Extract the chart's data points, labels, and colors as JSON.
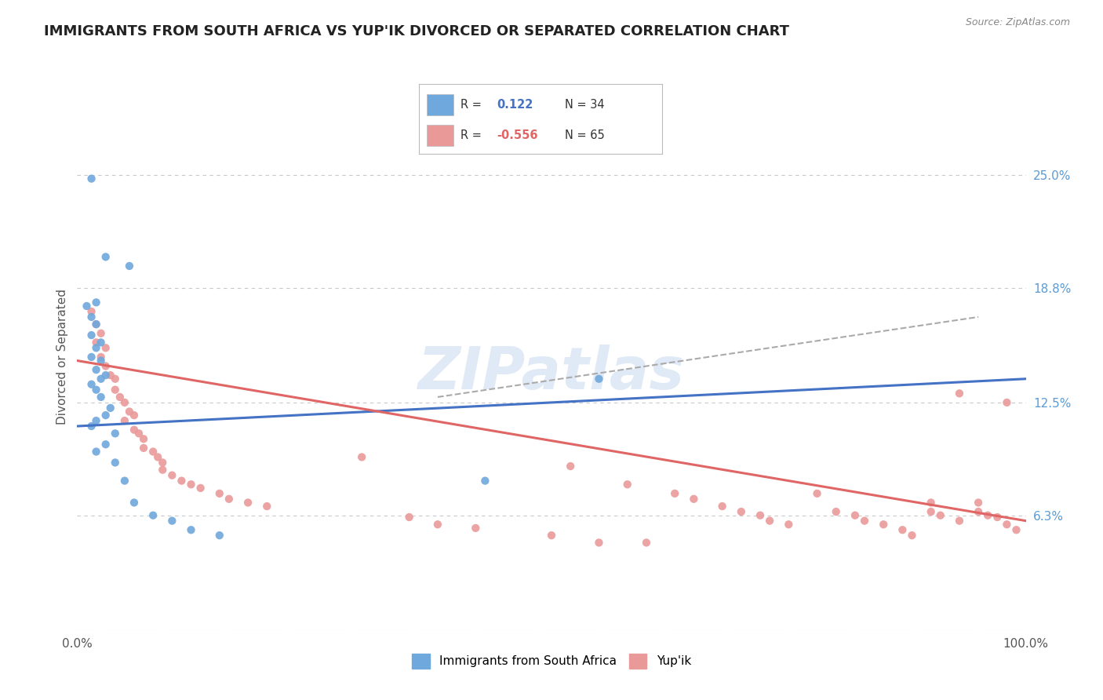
{
  "title": "IMMIGRANTS FROM SOUTH AFRICA VS YUP'IK DIVORCED OR SEPARATED CORRELATION CHART",
  "source_text": "Source: ZipAtlas.com",
  "ylabel": "Divorced or Separated",
  "xlim": [
    0.0,
    1.0
  ],
  "ylim": [
    0.0,
    0.3
  ],
  "ytick_labels": [
    "6.3%",
    "12.5%",
    "18.8%",
    "25.0%"
  ],
  "ytick_values": [
    0.063,
    0.125,
    0.188,
    0.25
  ],
  "xtick_labels": [
    "0.0%",
    "100.0%"
  ],
  "color_blue": "#6fa8dc",
  "color_pink": "#ea9999",
  "color_blue_line": "#4472c4",
  "color_pink_line": "#e06666",
  "color_gray_line": "#aaaaaa",
  "watermark": "ZIPatlas",
  "background_color": "#ffffff",
  "grid_color": "#c8c8c8",
  "blue_scatter": [
    [
      0.015,
      0.248
    ],
    [
      0.03,
      0.205
    ],
    [
      0.055,
      0.2
    ],
    [
      0.02,
      0.18
    ],
    [
      0.01,
      0.178
    ],
    [
      0.015,
      0.172
    ],
    [
      0.02,
      0.168
    ],
    [
      0.015,
      0.162
    ],
    [
      0.025,
      0.158
    ],
    [
      0.02,
      0.155
    ],
    [
      0.015,
      0.15
    ],
    [
      0.025,
      0.148
    ],
    [
      0.02,
      0.143
    ],
    [
      0.03,
      0.14
    ],
    [
      0.025,
      0.138
    ],
    [
      0.015,
      0.135
    ],
    [
      0.02,
      0.132
    ],
    [
      0.025,
      0.128
    ],
    [
      0.035,
      0.122
    ],
    [
      0.03,
      0.118
    ],
    [
      0.02,
      0.115
    ],
    [
      0.015,
      0.112
    ],
    [
      0.04,
      0.108
    ],
    [
      0.03,
      0.102
    ],
    [
      0.02,
      0.098
    ],
    [
      0.04,
      0.092
    ],
    [
      0.05,
      0.082
    ],
    [
      0.06,
      0.07
    ],
    [
      0.08,
      0.063
    ],
    [
      0.1,
      0.06
    ],
    [
      0.12,
      0.055
    ],
    [
      0.15,
      0.052
    ],
    [
      0.55,
      0.138
    ],
    [
      0.43,
      0.082
    ]
  ],
  "pink_scatter": [
    [
      0.015,
      0.175
    ],
    [
      0.02,
      0.168
    ],
    [
      0.025,
      0.163
    ],
    [
      0.02,
      0.158
    ],
    [
      0.03,
      0.155
    ],
    [
      0.025,
      0.15
    ],
    [
      0.03,
      0.145
    ],
    [
      0.035,
      0.14
    ],
    [
      0.04,
      0.138
    ],
    [
      0.04,
      0.132
    ],
    [
      0.045,
      0.128
    ],
    [
      0.05,
      0.125
    ],
    [
      0.055,
      0.12
    ],
    [
      0.06,
      0.118
    ],
    [
      0.05,
      0.115
    ],
    [
      0.06,
      0.11
    ],
    [
      0.065,
      0.108
    ],
    [
      0.07,
      0.105
    ],
    [
      0.07,
      0.1
    ],
    [
      0.08,
      0.098
    ],
    [
      0.085,
      0.095
    ],
    [
      0.09,
      0.092
    ],
    [
      0.09,
      0.088
    ],
    [
      0.1,
      0.085
    ],
    [
      0.11,
      0.082
    ],
    [
      0.12,
      0.08
    ],
    [
      0.13,
      0.078
    ],
    [
      0.15,
      0.075
    ],
    [
      0.16,
      0.072
    ],
    [
      0.18,
      0.07
    ],
    [
      0.2,
      0.068
    ],
    [
      0.3,
      0.095
    ],
    [
      0.35,
      0.062
    ],
    [
      0.38,
      0.058
    ],
    [
      0.42,
      0.056
    ],
    [
      0.5,
      0.052
    ],
    [
      0.52,
      0.09
    ],
    [
      0.6,
      0.048
    ],
    [
      0.58,
      0.08
    ],
    [
      0.63,
      0.075
    ],
    [
      0.65,
      0.072
    ],
    [
      0.68,
      0.068
    ],
    [
      0.7,
      0.065
    ],
    [
      0.72,
      0.063
    ],
    [
      0.73,
      0.06
    ],
    [
      0.75,
      0.058
    ],
    [
      0.78,
      0.075
    ],
    [
      0.8,
      0.065
    ],
    [
      0.82,
      0.063
    ],
    [
      0.83,
      0.06
    ],
    [
      0.85,
      0.058
    ],
    [
      0.87,
      0.055
    ],
    [
      0.88,
      0.052
    ],
    [
      0.9,
      0.07
    ],
    [
      0.9,
      0.065
    ],
    [
      0.91,
      0.063
    ],
    [
      0.93,
      0.06
    ],
    [
      0.93,
      0.13
    ],
    [
      0.95,
      0.07
    ],
    [
      0.95,
      0.065
    ],
    [
      0.96,
      0.063
    ],
    [
      0.97,
      0.062
    ],
    [
      0.98,
      0.125
    ],
    [
      0.98,
      0.058
    ],
    [
      0.99,
      0.055
    ],
    [
      0.55,
      0.048
    ]
  ],
  "blue_line": [
    [
      0.0,
      0.112
    ],
    [
      1.0,
      0.138
    ]
  ],
  "pink_line": [
    [
      0.0,
      0.148
    ],
    [
      1.0,
      0.06
    ]
  ],
  "gray_line": [
    [
      0.38,
      0.128
    ],
    [
      0.95,
      0.172
    ]
  ]
}
